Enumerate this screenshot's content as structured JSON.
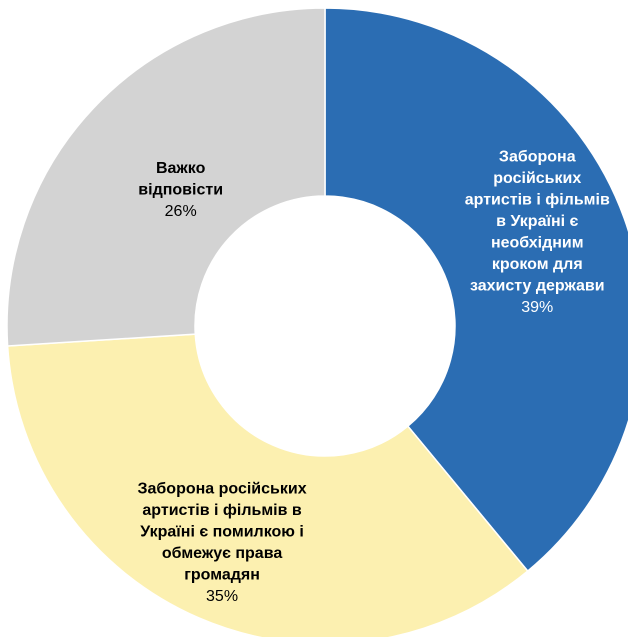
{
  "chart_data": {
    "type": "pie",
    "title": "",
    "series": [
      {
        "name": "",
        "values": [
          39,
          35,
          26
        ]
      }
    ],
    "slices": [
      {
        "label_lines": [
          "Заборона",
          "російських",
          "артистів і фільмів",
          "в Україні є",
          "необхідним",
          "кроком для",
          "захисту держави"
        ],
        "value": 39,
        "value_label": "39%",
        "color": "#2b6db3",
        "text_color": "#ffffff"
      },
      {
        "label_lines": [
          "Заборона російських",
          "артистів і фільмів в",
          "Україні є помилкою і",
          "обмежує права",
          "громадян"
        ],
        "value": 35,
        "value_label": "35%",
        "color": "#fcf0b0",
        "text_color": "#000000"
      },
      {
        "label_lines": [
          "Важко",
          "відповісти"
        ],
        "value": 26,
        "value_label": "26%",
        "color": "#d3d3d3",
        "text_color": "#000000"
      }
    ],
    "donut": true,
    "start_angle_deg": 0,
    "direction": "clockwise",
    "legend": "none",
    "grid": false
  }
}
